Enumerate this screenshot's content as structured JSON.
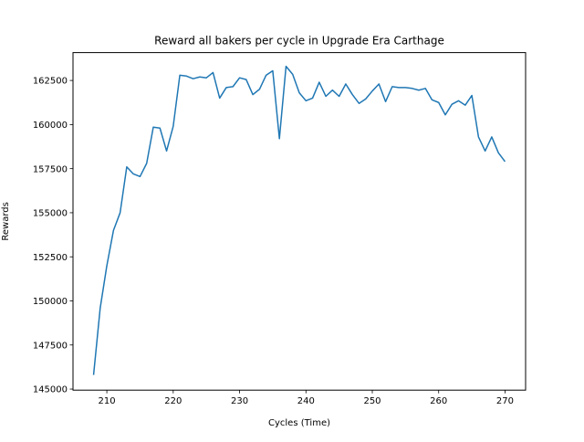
{
  "chart_data": {
    "type": "line",
    "title": "Reward all bakers per cycle in Upgrade Era Carthage",
    "xlabel": "Cycles (Time)",
    "ylabel": "Rewards",
    "xlim": [
      204.9,
      273.1
    ],
    "ylim": [
      144940,
      164080
    ],
    "xticks": [
      210,
      220,
      230,
      240,
      250,
      260,
      270
    ],
    "yticks": [
      145000,
      147500,
      150000,
      152500,
      155000,
      157500,
      160000,
      162500
    ],
    "grid": false,
    "line_color": "#1f77b4",
    "series": [
      {
        "x": [
          208,
          209,
          210,
          211,
          212,
          213,
          214,
          215,
          216,
          217,
          218,
          219,
          220,
          221,
          222,
          223,
          224,
          225,
          226,
          227,
          228,
          229,
          230,
          231,
          232,
          233,
          234,
          235,
          236,
          237,
          238,
          239,
          240,
          241,
          242,
          243,
          244,
          245,
          246,
          247,
          248,
          249,
          250,
          251,
          252,
          253,
          254,
          255,
          256,
          257,
          258,
          259,
          260,
          261,
          262,
          263,
          264,
          265,
          266,
          267,
          268,
          269,
          270
        ],
        "values": [
          145800,
          149600,
          152000,
          154000,
          155000,
          157600,
          157200,
          157050,
          157800,
          159850,
          159800,
          158500,
          159900,
          162800,
          162750,
          162600,
          162700,
          162650,
          162950,
          161500,
          162100,
          162150,
          162650,
          162550,
          161700,
          162000,
          162800,
          163050,
          159200,
          163300,
          162850,
          161800,
          161350,
          161500,
          162400,
          161600,
          161950,
          161600,
          162300,
          161700,
          161200,
          161450,
          161900,
          162300,
          161300,
          162150,
          162100,
          162100,
          162050,
          161950,
          162050,
          161400,
          161250,
          160550,
          161150,
          161350,
          161100,
          161650,
          159300,
          158500,
          159300,
          158400,
          157900
        ]
      }
    ]
  }
}
